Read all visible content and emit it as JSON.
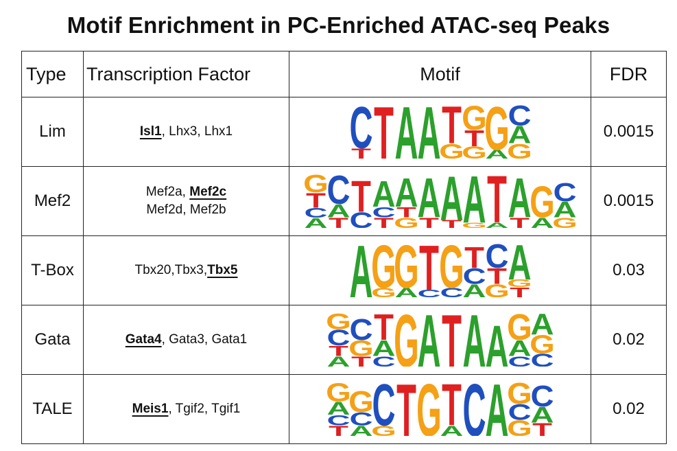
{
  "title": "Motif Enrichment in PC-Enriched ATAC-seq Peaks",
  "headers": {
    "type": "Type",
    "tf": "Transcription Factor",
    "motif": "Motif",
    "fdr": "FDR"
  },
  "colors": {
    "A": "#2ca02c",
    "C": "#1f4fbf",
    "G": "#f5a015",
    "T": "#e02020"
  },
  "rows": [
    {
      "type": "Lim",
      "tf_lines": [
        [
          {
            "text": "Isl1",
            "bold": true
          },
          {
            "text": ", Lhx3, Lhx1",
            "bold": false
          }
        ]
      ],
      "fdr": "0.0015",
      "motif": [
        [
          [
            "T",
            0.25
          ],
          [
            "C",
            1.0
          ]
        ],
        [
          [
            "T",
            1.0
          ]
        ],
        [
          [
            "A",
            1.0
          ]
        ],
        [
          [
            "A",
            1.0
          ]
        ],
        [
          [
            "G",
            0.4
          ],
          [
            "T",
            1.0
          ]
        ],
        [
          [
            "G",
            0.3
          ],
          [
            "T",
            0.4
          ],
          [
            "G",
            0.6
          ]
        ],
        [
          [
            "A",
            0.2
          ],
          [
            "G",
            1.0
          ]
        ],
        [
          [
            "G",
            0.3
          ],
          [
            "A",
            0.35
          ],
          [
            "C",
            0.4
          ]
        ]
      ]
    },
    {
      "type": "Mef2",
      "tf_lines": [
        [
          {
            "text": "Mef2a, ",
            "bold": false
          },
          {
            "text": "Mef2c",
            "bold": true
          }
        ],
        [
          {
            "text": "Mef2d, Mef2b",
            "bold": false
          }
        ]
      ],
      "fdr": "0.0015",
      "motif": [
        [
          [
            "A",
            0.2
          ],
          [
            "C",
            0.2
          ],
          [
            "T",
            0.3
          ],
          [
            "G",
            0.35
          ]
        ],
        [
          [
            "T",
            0.2
          ],
          [
            "A",
            0.25
          ],
          [
            "C",
            0.55
          ]
        ],
        [
          [
            "C",
            0.3
          ],
          [
            "T",
            0.6
          ]
        ],
        [
          [
            "T",
            0.2
          ],
          [
            "C",
            0.2
          ],
          [
            "A",
            0.5
          ]
        ],
        [
          [
            "G",
            0.2
          ],
          [
            "T",
            0.2
          ],
          [
            "A",
            0.55
          ]
        ],
        [
          [
            "T",
            0.2
          ],
          [
            "A",
            0.75
          ]
        ],
        [
          [
            "T",
            0.15
          ],
          [
            "A",
            0.85
          ]
        ],
        [
          [
            "G",
            0.1
          ],
          [
            "A",
            0.9
          ]
        ],
        [
          [
            "A",
            0.1
          ],
          [
            "T",
            0.9
          ]
        ],
        [
          [
            "T",
            0.2
          ],
          [
            "A",
            0.75
          ]
        ],
        [
          [
            "A",
            0.2
          ],
          [
            "G",
            0.6
          ]
        ],
        [
          [
            "G",
            0.2
          ],
          [
            "A",
            0.3
          ],
          [
            "C",
            0.35
          ]
        ]
      ]
    },
    {
      "type": "T-Box",
      "tf_lines": [
        [
          {
            "text": "Tbx20,Tbx3,",
            "bold": false
          },
          {
            "text": "Tbx5",
            "bold": true
          }
        ]
      ],
      "fdr": "0.03",
      "motif": [
        [
          [
            "A",
            1.0
          ]
        ],
        [
          [
            "G",
            0.2
          ],
          [
            "G",
            0.9
          ]
        ],
        [
          [
            "A",
            0.2
          ],
          [
            "G",
            0.9
          ]
        ],
        [
          [
            "C",
            0.15
          ],
          [
            "T",
            0.9
          ]
        ],
        [
          [
            "C",
            0.2
          ],
          [
            "G",
            0.9
          ]
        ],
        [
          [
            "A",
            0.25
          ],
          [
            "C",
            0.3
          ],
          [
            "T",
            0.4
          ]
        ],
        [
          [
            "G",
            0.25
          ],
          [
            "T",
            0.3
          ],
          [
            "C",
            0.45
          ]
        ],
        [
          [
            "T",
            0.2
          ],
          [
            "G",
            0.15
          ],
          [
            "A",
            0.7
          ]
        ]
      ]
    },
    {
      "type": "Gata",
      "tf_lines": [
        [
          {
            "text": "Gata4",
            "bold": true
          },
          {
            "text": ", Gata3, Gata1",
            "bold": false
          }
        ]
      ],
      "fdr": "0.02",
      "motif": [
        [
          [
            "A",
            0.2
          ],
          [
            "T",
            0.2
          ],
          [
            "C",
            0.3
          ],
          [
            "G",
            0.3
          ]
        ],
        [
          [
            "T",
            0.2
          ],
          [
            "G",
            0.3
          ],
          [
            "C",
            0.4
          ]
        ],
        [
          [
            "C",
            0.2
          ],
          [
            "A",
            0.3
          ],
          [
            "T",
            0.5
          ]
        ],
        [
          [
            "G",
            1.0
          ]
        ],
        [
          [
            "A",
            1.0
          ]
        ],
        [
          [
            "T",
            1.0
          ]
        ],
        [
          [
            "A",
            1.0
          ]
        ],
        [
          [
            "A",
            0.8
          ]
        ],
        [
          [
            "C",
            0.2
          ],
          [
            "A",
            0.3
          ],
          [
            "G",
            0.5
          ]
        ],
        [
          [
            "C",
            0.25
          ],
          [
            "G",
            0.35
          ],
          [
            "A",
            0.4
          ]
        ]
      ]
    },
    {
      "type": "TALE",
      "tf_lines": [
        [
          {
            "text": "Meis1",
            "bold": true
          },
          {
            "text": ", Tgif2, Tgif1",
            "bold": false
          }
        ]
      ],
      "fdr": "0.02",
      "motif": [
        [
          [
            "T",
            0.2
          ],
          [
            "C",
            0.2
          ],
          [
            "A",
            0.25
          ],
          [
            "G",
            0.35
          ]
        ],
        [
          [
            "A",
            0.2
          ],
          [
            "C",
            0.25
          ],
          [
            "G",
            0.4
          ]
        ],
        [
          [
            "G",
            0.2
          ],
          [
            "C",
            0.8
          ]
        ],
        [
          [
            "T",
            1.0
          ]
        ],
        [
          [
            "G",
            1.0
          ]
        ],
        [
          [
            "A",
            0.2
          ],
          [
            "T",
            0.8
          ]
        ],
        [
          [
            "C",
            1.0
          ]
        ],
        [
          [
            "A",
            1.0
          ]
        ],
        [
          [
            "G",
            0.3
          ],
          [
            "C",
            0.3
          ],
          [
            "G",
            0.4
          ]
        ],
        [
          [
            "T",
            0.25
          ],
          [
            "A",
            0.3
          ],
          [
            "C",
            0.4
          ]
        ]
      ]
    }
  ]
}
